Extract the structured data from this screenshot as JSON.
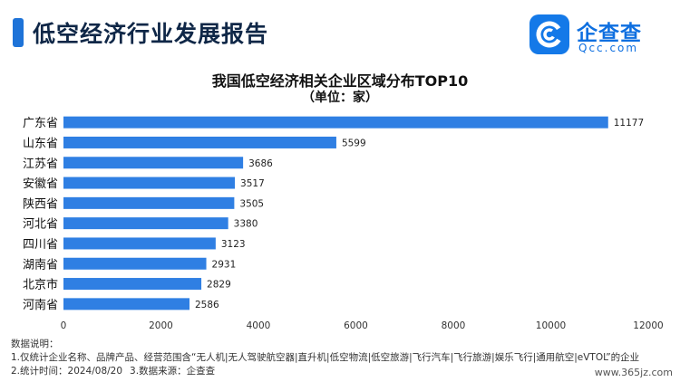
{
  "header": {
    "report_title": "低空经济行业发展报告",
    "logo_name": "企查查",
    "logo_domain": "Qcc.com"
  },
  "chart_data": {
    "type": "bar",
    "orientation": "horizontal",
    "title": "我国低空经济相关企业区域分布TOP10",
    "subtitle": "（单位：家）",
    "categories": [
      "广东省",
      "山东省",
      "江苏省",
      "安徽省",
      "陕西省",
      "河北省",
      "四川省",
      "湖南省",
      "北京市",
      "河南省"
    ],
    "values": [
      11177,
      5599,
      3686,
      3517,
      3505,
      3380,
      3123,
      2931,
      2829,
      2586
    ],
    "xlabel": "",
    "ylabel": "",
    "xlim": [
      0,
      12000
    ],
    "xticks": [
      0,
      2000,
      4000,
      6000,
      8000,
      10000,
      12000
    ],
    "grid": false,
    "bar_color": "#2f7fe3",
    "data_labels": true
  },
  "notes": {
    "heading": "数据说明：",
    "line1": "1.仅统计企业名称、品牌产品、经营范围含“无人机|无人驾驶航空器|直升机|低空物流|低空旅游|飞行汽车|飞行旅游|娱乐飞行|通用航空|eVTOL”的企业",
    "line2a": "2.统计时间：2024/08/20",
    "line2b": "3.数据来源：企查查"
  },
  "watermark": "www.365jz.com",
  "colors": {
    "accent": "#1e73d8",
    "bar": "#2f7fe3",
    "title_dark": "#0f2747",
    "logo_blue": "#1479e8"
  }
}
